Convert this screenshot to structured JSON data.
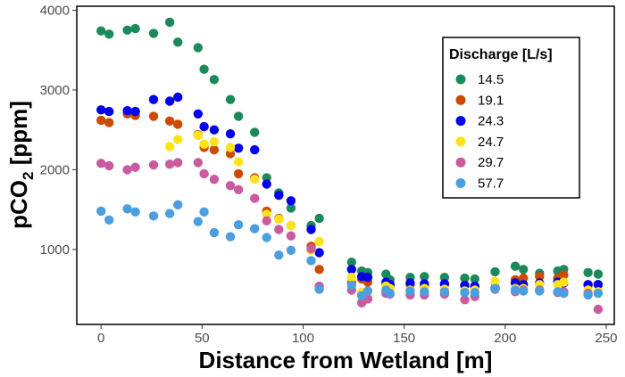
{
  "chart_data": {
    "type": "scatter",
    "xlabel": "Distance from Wetland [m]",
    "ylabel": "pCO",
    "ylabel_subscript": "2",
    "ylabel_suffix": " [ppm]",
    "xlim": [
      -12,
      254
    ],
    "ylim": [
      60,
      4050
    ],
    "xticks": [
      0,
      50,
      100,
      150,
      200,
      250
    ],
    "yticks": [
      1000,
      2000,
      3000,
      4000
    ],
    "grid": false,
    "legend": {
      "title": "Discharge [L/s]",
      "position": "top-right"
    },
    "series": [
      {
        "name": "14.5",
        "color": "#1a8a5a",
        "x": [
          0,
          4,
          13,
          17,
          26,
          34,
          38,
          48,
          51,
          56,
          64,
          68,
          76,
          82,
          88,
          94,
          104,
          108,
          124,
          129,
          132,
          141,
          143,
          153,
          160,
          170,
          180,
          185,
          195,
          205,
          209,
          217,
          226,
          229,
          241,
          246
        ],
        "y": [
          3740,
          3700,
          3750,
          3770,
          3710,
          3850,
          3600,
          3530,
          3260,
          3130,
          2880,
          2670,
          2470,
          1900,
          1710,
          1520,
          1300,
          1390,
          840,
          730,
          710,
          690,
          620,
          650,
          660,
          650,
          640,
          630,
          720,
          790,
          750,
          700,
          730,
          750,
          710,
          690
        ]
      },
      {
        "name": "19.1",
        "color": "#cc4b00",
        "x": [
          0,
          4,
          13,
          17,
          26,
          34,
          38,
          48,
          51,
          56,
          64,
          68,
          76,
          82,
          88,
          94,
          104,
          108,
          124,
          129,
          132,
          141,
          143,
          153,
          160,
          170,
          180,
          185,
          195,
          205,
          209,
          217,
          226,
          229,
          241,
          246
        ],
        "y": [
          2620,
          2590,
          2700,
          2680,
          2670,
          2610,
          2570,
          2440,
          2280,
          2250,
          2200,
          1950,
          1900,
          1480,
          1390,
          1300,
          1040,
          750,
          580,
          630,
          590,
          550,
          530,
          560,
          540,
          560,
          550,
          530,
          520,
          620,
          640,
          660,
          640,
          680,
          550,
          560
        ]
      },
      {
        "name": "24.3",
        "color": "#0000ee",
        "x": [
          0,
          4,
          13,
          17,
          26,
          34,
          38,
          48,
          51,
          56,
          64,
          68,
          76,
          82,
          88,
          94,
          104,
          108,
          124,
          129,
          132,
          141,
          143,
          153,
          160,
          170,
          180,
          185,
          195,
          205,
          209,
          217,
          226,
          229,
          241,
          246
        ],
        "y": [
          2750,
          2730,
          2740,
          2730,
          2880,
          2860,
          2910,
          2700,
          2540,
          2500,
          2450,
          2270,
          2250,
          1820,
          1680,
          1610,
          1250,
          960,
          750,
          660,
          650,
          590,
          560,
          580,
          570,
          570,
          550,
          540,
          510,
          580,
          560,
          580,
          590,
          580,
          560,
          560
        ]
      },
      {
        "name": "24.7",
        "color": "#ffe31a",
        "x": [
          0,
          4,
          13,
          17,
          26,
          34,
          38,
          48,
          51,
          56,
          64,
          68,
          76,
          82,
          88,
          94,
          104,
          108,
          124,
          129,
          132,
          141,
          143,
          153,
          160,
          170,
          180,
          185,
          195,
          205,
          209,
          217,
          226,
          229,
          241,
          246
        ],
        "y": [
          null,
          null,
          null,
          null,
          null,
          2290,
          2380,
          2430,
          2320,
          2350,
          2280,
          2100,
          1880,
          1440,
          1380,
          1300,
          990,
          1100,
          650,
          460,
          400,
          540,
          510,
          490,
          510,
          500,
          480,
          490,
          600,
          510,
          510,
          560,
          560,
          590,
          490,
          470
        ]
      },
      {
        "name": "29.7",
        "color": "#c95b9e",
        "x": [
          0,
          4,
          13,
          17,
          26,
          34,
          38,
          48,
          51,
          56,
          64,
          68,
          76,
          82,
          88,
          94,
          104,
          108,
          124,
          129,
          132,
          141,
          143,
          153,
          160,
          170,
          180,
          185,
          195,
          205,
          209,
          217,
          226,
          229,
          241,
          246
        ],
        "y": [
          2080,
          2050,
          2000,
          2030,
          2060,
          2070,
          2090,
          2090,
          1950,
          1880,
          1800,
          1750,
          1640,
          1360,
          1250,
          1170,
          1010,
          540,
          490,
          330,
          380,
          450,
          440,
          430,
          430,
          440,
          370,
          410,
          500,
          470,
          490,
          490,
          460,
          470,
          450,
          250
        ]
      },
      {
        "name": "57.7",
        "color": "#4a9fe0",
        "x": [
          0,
          4,
          13,
          17,
          26,
          34,
          38,
          48,
          51,
          56,
          64,
          68,
          76,
          82,
          88,
          94,
          104,
          108,
          124,
          129,
          132,
          141,
          143,
          153,
          160,
          170,
          180,
          185,
          195,
          205,
          209,
          217,
          226,
          229,
          241,
          246
        ],
        "y": [
          1480,
          1370,
          1510,
          1470,
          1420,
          1450,
          1560,
          1350,
          1470,
          1210,
          1160,
          1310,
          1260,
          1150,
          930,
          990,
          860,
          500,
          550,
          420,
          480,
          490,
          450,
          480,
          470,
          470,
          460,
          460,
          510,
          490,
          480,
          480,
          470,
          450,
          430,
          450
        ]
      }
    ]
  }
}
